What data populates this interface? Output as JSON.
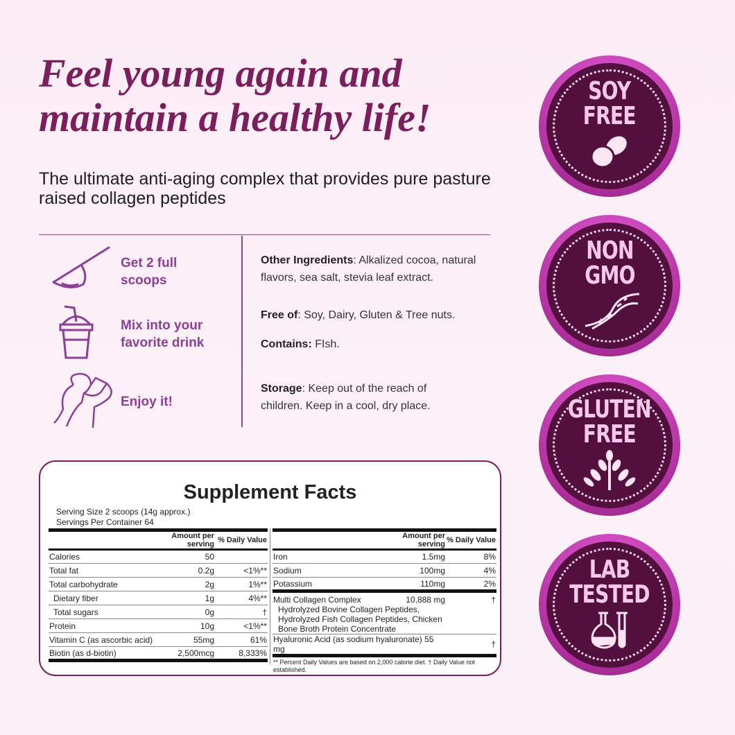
{
  "headline": [
    "Feel young again and",
    "maintain a healthy life!"
  ],
  "subtitle": "The ultimate anti-aging complex that provides pure pasture raised collagen peptides",
  "steps": [
    {
      "icon": "scoop-icon",
      "lines": [
        "Get 2 full",
        "scoops"
      ]
    },
    {
      "icon": "drink-cup-icon",
      "lines": [
        "Mix into your",
        "favorite drink"
      ]
    },
    {
      "icon": "woman-drinking-icon",
      "lines": [
        "Enjoy it!"
      ]
    }
  ],
  "info": [
    {
      "label": "Other Ingredients",
      "text": ": Alkalized cocoa, natural flavors, sea salt, stevia leaf extract."
    },
    {
      "label": "Free of",
      "text": ": Soy, Dairy, Gluten & Tree nuts."
    },
    {
      "label": "Contains:",
      "text": " FIsh."
    },
    {
      "label": "Storage",
      "text": ": Keep out of the reach of children. Keep in a cool, dry place."
    }
  ],
  "facts": {
    "title": "Supplement Facts",
    "serving_size": "Serving Size 2 scoops (14g approx.)",
    "servings_per_container": "Servings Per Container 64",
    "col_amount": "Amount per serving",
    "col_dv": "% Daily Value",
    "left_rows": [
      {
        "name": "Calories",
        "amount": "50",
        "dv": ""
      },
      {
        "name": "Total fat",
        "amount": "0.2g",
        "dv": "<1%**"
      },
      {
        "name": "Total carbohydrate",
        "amount": "2g",
        "dv": "1%**"
      },
      {
        "name": "Dietary fiber",
        "amount": "1g",
        "dv": "4%**"
      },
      {
        "name": "Total sugars",
        "amount": "0g",
        "dv": "†"
      },
      {
        "name": "Protein",
        "amount": "10g",
        "dv": "<1%**"
      },
      {
        "name": "Vitamin C (as ascorbic acid)",
        "amount": "55mg",
        "dv": "61%"
      },
      {
        "name": "Biotin (as d-biotin)",
        "amount": "2,500mcg",
        "dv": "8,333%"
      }
    ],
    "right_rows": [
      {
        "name": "Iron",
        "amount": "1.5mg",
        "dv": "8%"
      },
      {
        "name": "Sodium",
        "amount": "100mg",
        "dv": "4%"
      },
      {
        "name": "Potassium",
        "amount": "110mg",
        "dv": "2%"
      }
    ],
    "collagen": {
      "name": "Multi Collagen Complex",
      "amount": "10,888 mg",
      "dv": "†",
      "detail": "Hydrolyzed Bovine Collagen Peptides, Hydrolyzed Fish Collagen Peptides, Chicken Bone Broth Protein Concentrate"
    },
    "hyaluronic": {
      "name": "Hyaluronic Acid (as sodium hyaluronate)",
      "amount": "55 mg",
      "dv": "†"
    },
    "footnote": "** Percent Daily Values are based on 2,000 calorie diet. † Daily Value not established."
  },
  "badges": [
    {
      "lines": [
        "SOY",
        "FREE"
      ],
      "icon": "beans-icon"
    },
    {
      "lines": [
        "NON",
        "GMO"
      ],
      "icon": "dna-icon"
    },
    {
      "lines": [
        "GLUTEN",
        "FREE"
      ],
      "icon": "wheat-icon"
    },
    {
      "lines": [
        "LAB",
        "TESTED"
      ],
      "icon": "flasks-icon"
    }
  ],
  "colors": {
    "headline": "#7a1f5c",
    "steps": "#8b3f96",
    "badge_dark": "#530f3d",
    "badge_ring": "#c23fb5",
    "badge_text": "#f6c9ea"
  }
}
